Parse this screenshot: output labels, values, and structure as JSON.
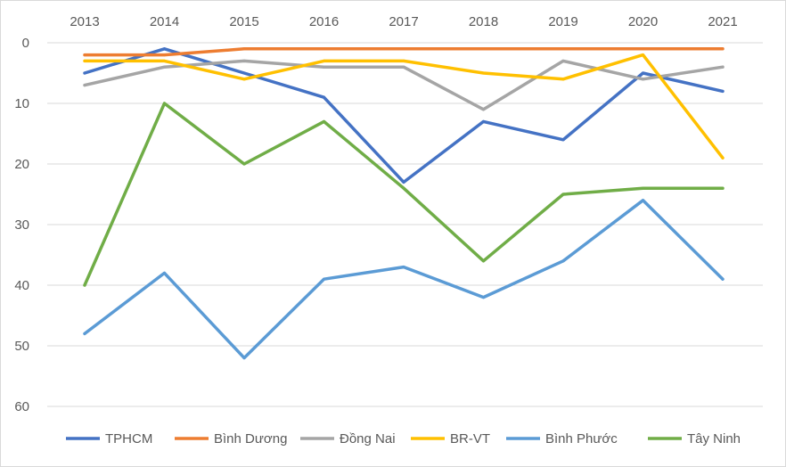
{
  "chart_data": {
    "type": "line",
    "title": "",
    "xlabel": "",
    "ylabel": "",
    "y_axis_reversed": true,
    "x_axis_position": "top",
    "ylim": [
      0,
      60
    ],
    "yticks": [
      0,
      10,
      20,
      30,
      40,
      50,
      60
    ],
    "grid": "horizontal",
    "legend_position": "bottom",
    "categories": [
      "2013",
      "2014",
      "2015",
      "2016",
      "2017",
      "2018",
      "2019",
      "2020",
      "2021"
    ],
    "series": [
      {
        "name": "TPHCM",
        "color": "#4472C4",
        "values": [
          5,
          1,
          5,
          9,
          23,
          13,
          16,
          5,
          8
        ]
      },
      {
        "name": "Bình Dương",
        "color": "#ED7D31",
        "values": [
          2,
          2,
          1,
          1,
          1,
          1,
          1,
          1,
          1
        ]
      },
      {
        "name": "Đồng Nai",
        "color": "#A5A5A5",
        "values": [
          7,
          4,
          3,
          4,
          4,
          11,
          3,
          6,
          4
        ]
      },
      {
        "name": "BR-VT",
        "color": "#FFC000",
        "values": [
          3,
          3,
          6,
          3,
          3,
          5,
          6,
          2,
          19
        ]
      },
      {
        "name": "Bình Phước",
        "color": "#5B9BD5",
        "values": [
          48,
          38,
          52,
          39,
          37,
          42,
          36,
          26,
          39
        ]
      },
      {
        "name": "Tây Ninh",
        "color": "#70AD47",
        "values": [
          40,
          10,
          20,
          13,
          24,
          36,
          25,
          24,
          24
        ]
      }
    ]
  }
}
